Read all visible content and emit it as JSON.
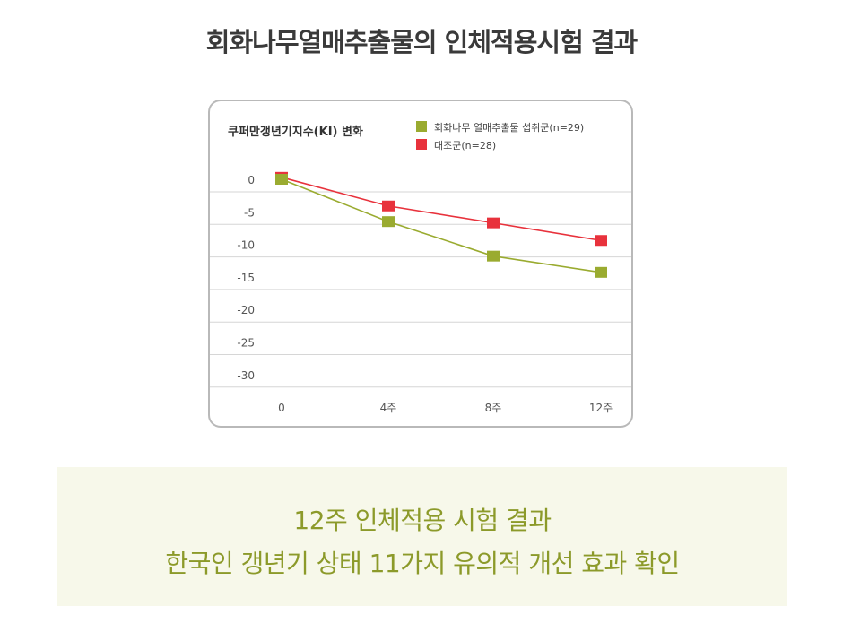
{
  "title": "회화나무열매추출물의 인체적용시험 결과",
  "chart_data": {
    "type": "line",
    "ylabel": "쿠퍼만갱년기지수(KI) 변화",
    "categories": [
      "0",
      "4주",
      "8주",
      "12주"
    ],
    "y_ticks": [
      "0",
      "-5",
      "-10",
      "-15",
      "-20",
      "-25",
      "-30"
    ],
    "ylim": [
      -32,
      1
    ],
    "grid": true,
    "legend_position": "top-right",
    "series": [
      {
        "name": "회화나무 열매추출물 섭취군(n=29)",
        "color": "#9aab30",
        "values": [
          0,
          -6.5,
          -11.8,
          -14.3
        ]
      },
      {
        "name": "대조군(n=28)",
        "color": "#e8323c",
        "values": [
          0.3,
          -4.1,
          -6.7,
          -9.4
        ]
      }
    ]
  },
  "summary": {
    "line1": "12주 인체적용 시험 결과",
    "line2": "한국인 갱년기 상태 11가지 유의적 개선 효과 확인"
  }
}
